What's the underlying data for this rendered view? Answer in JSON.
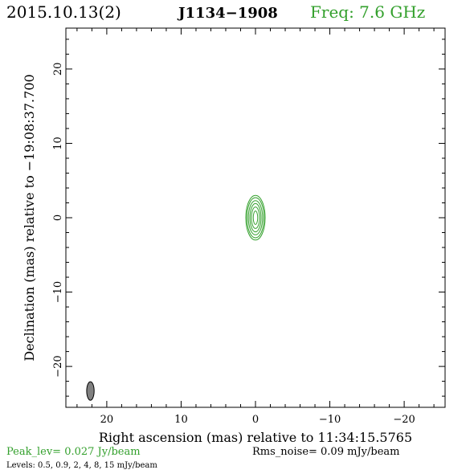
{
  "header": {
    "date": "2015.10.13(2)",
    "source": "J1134−1908",
    "freq": "Freq: 7.6 GHz"
  },
  "colors": {
    "contour": "#33a02c",
    "beam_fill": "#808080",
    "axes": "#000000",
    "accent": "#33a02c"
  },
  "footer": {
    "peak": "Peak_lev=  0.027 Jy/beam",
    "rms": "Rms_noise= 0.09 mJy/beam",
    "levels": "Levels: 0.5, 0.9,   2,   4,   8,  15 mJy/beam"
  },
  "chart_data": {
    "type": "contour",
    "title": "",
    "xlabel": "Right ascension (mas) relative to 11:34:15.5765",
    "ylabel": "Declination (mas) relative to −19:08:37.700",
    "xlim": [
      25.5,
      -25.5
    ],
    "ylim": [
      -25.5,
      25.5
    ],
    "x_ticks": [
      20,
      10,
      0,
      -10,
      -20
    ],
    "x_tick_labels": [
      "20",
      "10",
      "0",
      "−10",
      "−20"
    ],
    "y_ticks": [
      20,
      10,
      0,
      -10,
      -20
    ],
    "y_tick_labels": [
      "20",
      "10",
      "0",
      "−10",
      "−20"
    ],
    "grid": false,
    "contour_center": [
      0,
      0
    ],
    "contour_levels_mJy": [
      0.5,
      0.9,
      2,
      4,
      8,
      15
    ],
    "contour_semi_axes_mas": [
      {
        "a": 1.3,
        "b": 3.0
      },
      {
        "a": 1.15,
        "b": 2.7
      },
      {
        "a": 0.95,
        "b": 2.3
      },
      {
        "a": 0.75,
        "b": 1.9
      },
      {
        "a": 0.55,
        "b": 1.45
      },
      {
        "a": 0.3,
        "b": 0.9
      }
    ],
    "beam": {
      "x": 22.2,
      "y": -23.3,
      "major_mas": 2.5,
      "minor_mas": 1.0,
      "pa_deg": 0
    }
  }
}
